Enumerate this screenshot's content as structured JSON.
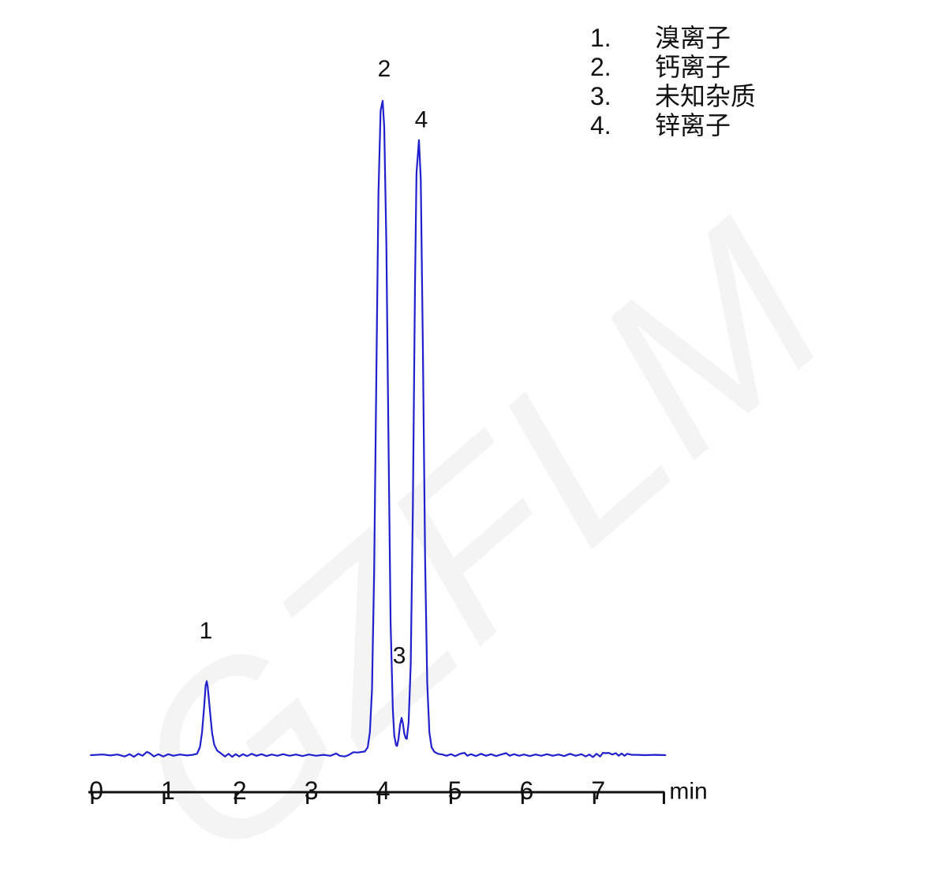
{
  "watermark": {
    "text": "GZFLM",
    "color": "#f4f4f4"
  },
  "legend": {
    "items": [
      {
        "num": "1.",
        "label": "溴离子"
      },
      {
        "num": "2.",
        "label": "钙离子"
      },
      {
        "num": "3.",
        "label": "未知杂质"
      },
      {
        "num": "4.",
        "label": "锌离子"
      }
    ]
  },
  "chart_data": {
    "type": "line",
    "title": "",
    "xlabel": "min",
    "ylabel": "",
    "grid": false,
    "legend_position": "top-right",
    "trace_color": "#2020cc",
    "axis_color": "#111111",
    "x_axis": {
      "unit_label": "min",
      "ticks": [
        0,
        1,
        2,
        3,
        4,
        5,
        6,
        7
      ],
      "xlim": [
        -0.055,
        7.99
      ],
      "axis_end_t": 7.98,
      "end_tick_t": 7.97
    },
    "y_axis": {
      "visible": false,
      "ylim_rel": [
        -1,
        110
      ]
    },
    "peaks": [
      {
        "label": "1",
        "name": "溴离子",
        "retention_min": 1.6,
        "height_rel": 11.3
      },
      {
        "label": "2",
        "name": "钙离子",
        "retention_min": 4.05,
        "height_rel": 100
      },
      {
        "label": "3",
        "name": "未知杂质",
        "retention_min": 4.31,
        "height_rel": 5.7
      },
      {
        "label": "4",
        "name": "锌离子",
        "retention_min": 4.55,
        "height_rel": 94
      }
    ],
    "annotations": [
      {
        "text": "1",
        "t": 1.584,
        "v": 19.0
      },
      {
        "text": "2",
        "t": 4.07,
        "v": 104.9
      },
      {
        "text": "3",
        "t": 4.28,
        "v": 15.2
      },
      {
        "text": "4",
        "t": 4.587,
        "v": 97.1
      }
    ],
    "series": [
      {
        "name": "conductivity-trace",
        "color": "#2020cc",
        "points": [
          [
            -0.02,
            0
          ],
          [
            0.15,
            0.1
          ],
          [
            0.25,
            -0.05
          ],
          [
            0.35,
            0.1
          ],
          [
            0.45,
            -0.2
          ],
          [
            0.52,
            0.15
          ],
          [
            0.58,
            -0.25
          ],
          [
            0.64,
            0.2
          ],
          [
            0.7,
            -0.1
          ],
          [
            0.76,
            0.5
          ],
          [
            0.8,
            0.3
          ],
          [
            0.86,
            -0.2
          ],
          [
            0.92,
            0.15
          ],
          [
            0.99,
            -0.2
          ],
          [
            1.06,
            0.15
          ],
          [
            1.13,
            -0.1
          ],
          [
            1.22,
            0.1
          ],
          [
            1.32,
            -0.05
          ],
          [
            1.4,
            0.05
          ],
          [
            1.46,
            0.2
          ],
          [
            1.5,
            1.2
          ],
          [
            1.53,
            3.5
          ],
          [
            1.56,
            7.5
          ],
          [
            1.58,
            10.6
          ],
          [
            1.595,
            11.3
          ],
          [
            1.61,
            10.4
          ],
          [
            1.64,
            6.8
          ],
          [
            1.67,
            3.4
          ],
          [
            1.7,
            1.6
          ],
          [
            1.74,
            0.7
          ],
          [
            1.79,
            0.3
          ],
          [
            1.85,
            -0.2
          ],
          [
            1.9,
            0.2
          ],
          [
            1.95,
            -0.25
          ],
          [
            2.0,
            0.15
          ],
          [
            2.05,
            -0.2
          ],
          [
            2.1,
            0.15
          ],
          [
            2.16,
            -0.15
          ],
          [
            2.22,
            0.2
          ],
          [
            2.29,
            -0.1
          ],
          [
            2.36,
            0.15
          ],
          [
            2.43,
            -0.15
          ],
          [
            2.5,
            0.1
          ],
          [
            2.58,
            -0.1
          ],
          [
            2.66,
            0.15
          ],
          [
            2.75,
            -0.1
          ],
          [
            2.84,
            0.1
          ],
          [
            2.93,
            -0.15
          ],
          [
            3.02,
            0.1
          ],
          [
            3.12,
            -0.1
          ],
          [
            3.22,
            0.05
          ],
          [
            3.32,
            -0.1
          ],
          [
            3.4,
            0.25
          ],
          [
            3.45,
            -0.1
          ],
          [
            3.52,
            -0.2
          ],
          [
            3.58,
            0.05
          ],
          [
            3.64,
            0.45
          ],
          [
            3.7,
            0.4
          ],
          [
            3.76,
            0.5
          ],
          [
            3.8,
            0.55
          ],
          [
            3.84,
            1.2
          ],
          [
            3.87,
            3.5
          ],
          [
            3.9,
            10
          ],
          [
            3.93,
            28
          ],
          [
            3.96,
            58
          ],
          [
            3.99,
            86
          ],
          [
            4.02,
            98.5
          ],
          [
            4.048,
            100
          ],
          [
            4.07,
            96
          ],
          [
            4.1,
            78
          ],
          [
            4.13,
            48
          ],
          [
            4.16,
            20
          ],
          [
            4.19,
            7
          ],
          [
            4.21,
            3
          ],
          [
            4.235,
            1.5
          ],
          [
            4.25,
            1.4
          ],
          [
            4.27,
            2.5
          ],
          [
            4.29,
            4.6
          ],
          [
            4.312,
            5.7
          ],
          [
            4.33,
            4.9
          ],
          [
            4.35,
            3.3
          ],
          [
            4.37,
            2.6
          ],
          [
            4.385,
            2.5
          ],
          [
            4.41,
            5
          ],
          [
            4.44,
            14
          ],
          [
            4.47,
            38
          ],
          [
            4.5,
            72
          ],
          [
            4.52,
            89
          ],
          [
            4.554,
            94
          ],
          [
            4.58,
            88
          ],
          [
            4.61,
            62
          ],
          [
            4.64,
            30
          ],
          [
            4.67,
            11
          ],
          [
            4.7,
            3.5
          ],
          [
            4.73,
            1.2
          ],
          [
            4.77,
            0.5
          ],
          [
            4.82,
            0.2
          ],
          [
            4.88,
            0.1
          ],
          [
            4.94,
            -0.1
          ],
          [
            5.0,
            0.15
          ],
          [
            5.06,
            -0.15
          ],
          [
            5.13,
            0.2
          ],
          [
            5.19,
            0.35
          ],
          [
            5.23,
            -0.1
          ],
          [
            5.28,
            0.15
          ],
          [
            5.35,
            -0.15
          ],
          [
            5.42,
            0.2
          ],
          [
            5.49,
            -0.1
          ],
          [
            5.56,
            0.15
          ],
          [
            5.63,
            -0.15
          ],
          [
            5.7,
            0.1
          ],
          [
            5.77,
            0.3
          ],
          [
            5.82,
            -0.1
          ],
          [
            5.88,
            0.15
          ],
          [
            5.95,
            -0.1
          ],
          [
            6.02,
            0.1
          ],
          [
            6.1,
            -0.15
          ],
          [
            6.18,
            0.1
          ],
          [
            6.26,
            -0.1
          ],
          [
            6.34,
            0.15
          ],
          [
            6.42,
            -0.1
          ],
          [
            6.5,
            0.1
          ],
          [
            6.58,
            -0.15
          ],
          [
            6.66,
            0.2
          ],
          [
            6.74,
            -0.1
          ],
          [
            6.82,
            0.15
          ],
          [
            6.88,
            -0.2
          ],
          [
            6.93,
            0.1
          ],
          [
            6.98,
            -0.3
          ],
          [
            7.03,
            0.2
          ],
          [
            7.08,
            -0.2
          ],
          [
            7.12,
            0.35
          ],
          [
            7.16,
            0.3
          ],
          [
            7.2,
            0.35
          ],
          [
            7.25,
            0.1
          ],
          [
            7.3,
            0.3
          ],
          [
            7.34,
            -0.1
          ],
          [
            7.38,
            0.25
          ],
          [
            7.42,
            -0.1
          ],
          [
            7.46,
            0.2
          ],
          [
            7.52,
            0.05
          ],
          [
            7.6,
            0.05
          ],
          [
            7.7,
            0.0
          ],
          [
            7.85,
            0.05
          ],
          [
            7.99,
            0
          ]
        ]
      }
    ]
  }
}
